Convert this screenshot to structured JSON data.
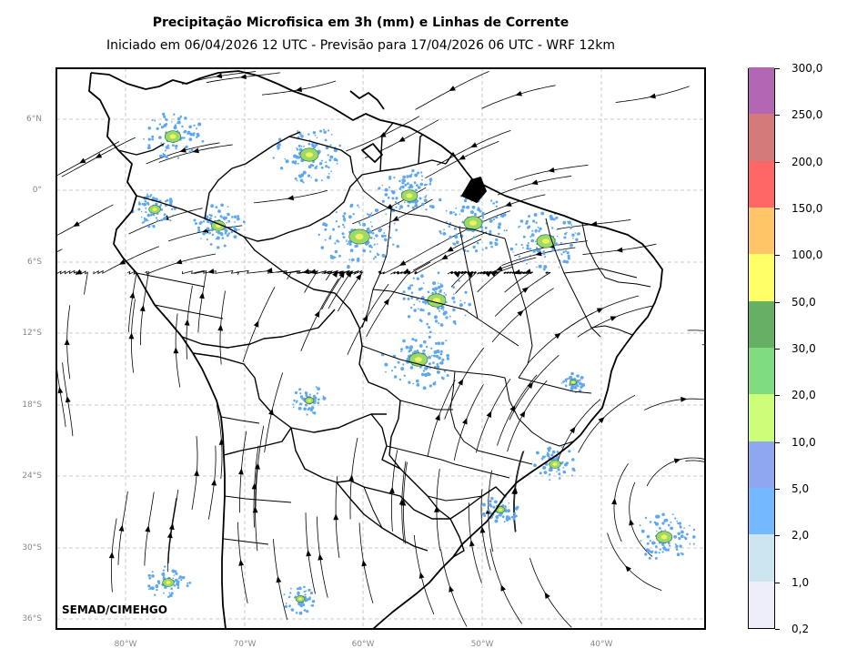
{
  "title": "Precipitação Microfisica em 3h (mm) e Linhas de Corrente",
  "subtitle": "Iniciado em 06/04/2026 12 UTC - Previsão para 17/04/2026 06 UTC - WRF 12km",
  "credit": "SEMAD/CIMEHGO",
  "lat_ticks": [
    "6°N",
    "0°",
    "6°S",
    "12°S",
    "18°S",
    "24°S",
    "30°S",
    "36°S"
  ],
  "lon_ticks": [
    "80°W",
    "70°W",
    "60°W",
    "50°W",
    "40°W"
  ],
  "map_extent": {
    "lon_min": -86,
    "lon_max": -31.5,
    "lat_min": -36.5,
    "lat_max": 10.5
  },
  "grid": true,
  "colorbar": {
    "labels": [
      "0,2",
      "1,0",
      "2,0",
      "5,0",
      "10,0",
      "20,0",
      "30,0",
      "50,0",
      "100,0",
      "150,0",
      "200,0",
      "250,0",
      "300,0"
    ],
    "colors": [
      "#eeeefa",
      "#cde5f0",
      "#74b9ff",
      "#8ea7ee",
      "#ccff77",
      "#7fdd7f",
      "#66b066",
      "#ffff66",
      "#ffc566",
      "#ff6666",
      "#d47a7a",
      "#b366b3"
    ]
  },
  "precip_colors": {
    "light": "#5fa8f0",
    "mid": "#9ad96a",
    "heavy": "#f2f25a"
  }
}
